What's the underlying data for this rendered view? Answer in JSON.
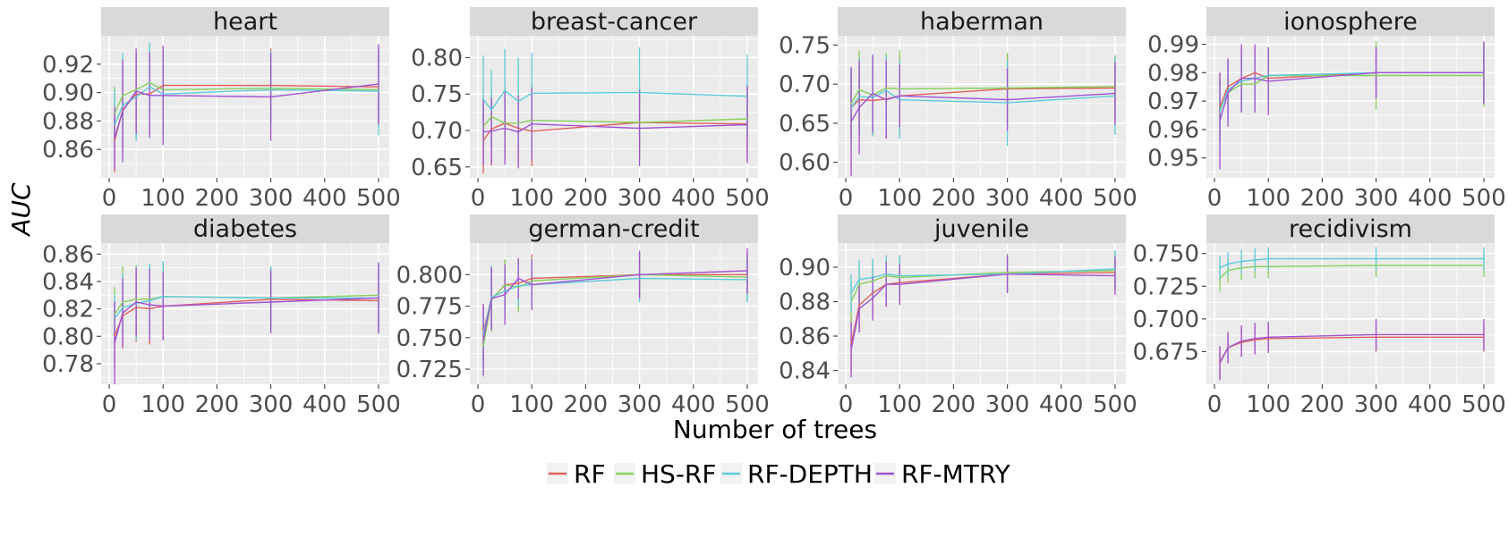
{
  "xlabel": "Number of trees",
  "ylabel": "AUC",
  "legend": [
    {
      "label": "RF",
      "color": "#e0605a"
    },
    {
      "label": "HS-RF",
      "color": "#88d05c"
    },
    {
      "label": "RF-DEPTH",
      "color": "#5ccbd8"
    },
    {
      "label": "RF-MTRY",
      "color": "#a052d4"
    }
  ],
  "chart_data": [
    {
      "type": "line",
      "title": "heart",
      "x": [
        10,
        25,
        50,
        75,
        100,
        300,
        500
      ],
      "xlim": [
        -15,
        520
      ],
      "xticks": [
        0,
        100,
        200,
        300,
        400,
        500
      ],
      "xtick_labels": [
        "0",
        "100",
        "200",
        "300",
        "400",
        "500"
      ],
      "ylim": [
        0.84,
        0.94
      ],
      "yticks": [
        0.86,
        0.88,
        0.9,
        0.92
      ],
      "ytick_labels": [
        "0.86",
        "0.88",
        "0.90",
        "0.92"
      ],
      "series": [
        {
          "name": "RF",
          "values": [
            0.866,
            0.888,
            0.899,
            0.899,
            0.905,
            0.905,
            0.904
          ],
          "err": [
            0.022,
            0.031,
            0.029,
            0.029,
            0.027,
            0.026,
            0.027
          ]
        },
        {
          "name": "HS-RF",
          "values": [
            0.885,
            0.898,
            0.902,
            0.907,
            0.902,
            0.903,
            0.902
          ],
          "err": [
            0.019,
            0.022,
            0.025,
            0.025,
            0.027,
            0.025,
            0.027
          ]
        },
        {
          "name": "RF-DEPTH",
          "values": [
            0.877,
            0.891,
            0.897,
            0.904,
            0.899,
            0.902,
            0.901
          ],
          "err": [
            0.025,
            0.037,
            0.031,
            0.031,
            0.031,
            0.027,
            0.031
          ]
        },
        {
          "name": "RF-MTRY",
          "values": [
            0.868,
            0.887,
            0.901,
            0.898,
            0.898,
            0.897,
            0.906
          ],
          "err": [
            0.022,
            0.036,
            0.03,
            0.03,
            0.035,
            0.031,
            0.028
          ]
        }
      ]
    },
    {
      "type": "line",
      "title": "breast-cancer",
      "x": [
        10,
        25,
        50,
        75,
        100,
        300,
        500
      ],
      "xlim": [
        -15,
        520
      ],
      "xticks": [
        0,
        100,
        200,
        300,
        400,
        500
      ],
      "xtick_labels": [
        "0",
        "100",
        "200",
        "300",
        "400",
        "500"
      ],
      "ylim": [
        0.635,
        0.83
      ],
      "yticks": [
        0.65,
        0.7,
        0.75,
        0.8
      ],
      "ytick_labels": [
        "0.65",
        "0.70",
        "0.75",
        "0.80"
      ],
      "series": [
        {
          "name": "RF",
          "values": [
            0.686,
            0.702,
            0.71,
            0.703,
            0.699,
            0.711,
            0.709
          ],
          "err": [
            0.045,
            0.05,
            0.05,
            0.05,
            0.048,
            0.05,
            0.05
          ]
        },
        {
          "name": "HS-RF",
          "values": [
            0.705,
            0.719,
            0.71,
            0.71,
            0.714,
            0.711,
            0.716
          ],
          "err": [
            0.042,
            0.04,
            0.05,
            0.05,
            0.05,
            0.05,
            0.05
          ]
        },
        {
          "name": "RF-DEPTH",
          "values": [
            0.743,
            0.728,
            0.755,
            0.74,
            0.751,
            0.752,
            0.747
          ],
          "err": [
            0.06,
            0.055,
            0.057,
            0.06,
            0.056,
            0.062,
            0.057
          ]
        },
        {
          "name": "RF-MTRY",
          "values": [
            0.698,
            0.699,
            0.703,
            0.698,
            0.709,
            0.703,
            0.708
          ],
          "err": [
            0.045,
            0.045,
            0.05,
            0.05,
            0.05,
            0.052,
            0.053
          ]
        }
      ]
    },
    {
      "type": "line",
      "title": "haberman",
      "x": [
        10,
        25,
        50,
        75,
        100,
        300,
        500
      ],
      "xlim": [
        -15,
        520
      ],
      "xticks": [
        0,
        100,
        200,
        300,
        400,
        500
      ],
      "xtick_labels": [
        "0",
        "100",
        "200",
        "300",
        "400",
        "500"
      ],
      "ylim": [
        0.58,
        0.762
      ],
      "yticks": [
        0.6,
        0.65,
        0.7,
        0.75
      ],
      "ytick_labels": [
        "0.60",
        "0.65",
        "0.70",
        "0.75"
      ],
      "series": [
        {
          "name": "RF",
          "values": [
            0.67,
            0.68,
            0.679,
            0.681,
            0.685,
            0.694,
            0.695
          ],
          "err": [
            0.04,
            0.045,
            0.045,
            0.05,
            0.05,
            0.045,
            0.04
          ]
        },
        {
          "name": "HS-RF",
          "values": [
            0.675,
            0.693,
            0.686,
            0.695,
            0.694,
            0.695,
            0.697
          ],
          "err": [
            0.04,
            0.05,
            0.05,
            0.045,
            0.05,
            0.045,
            0.04
          ]
        },
        {
          "name": "RF-DEPTH",
          "values": [
            0.67,
            0.684,
            0.683,
            0.692,
            0.68,
            0.676,
            0.685
          ],
          "err": [
            0.05,
            0.05,
            0.05,
            0.045,
            0.05,
            0.055,
            0.05
          ]
        },
        {
          "name": "RF-MTRY",
          "values": [
            0.652,
            0.67,
            0.688,
            0.68,
            0.685,
            0.68,
            0.688
          ],
          "err": [
            0.07,
            0.06,
            0.05,
            0.05,
            0.04,
            0.04,
            0.04
          ]
        }
      ]
    },
    {
      "type": "line",
      "title": "ionosphere",
      "x": [
        10,
        25,
        50,
        75,
        100,
        300,
        500
      ],
      "xlim": [
        -15,
        520
      ],
      "xticks": [
        0,
        100,
        200,
        300,
        400,
        500
      ],
      "xtick_labels": [
        "0",
        "100",
        "200",
        "300",
        "400",
        "500"
      ],
      "ylim": [
        0.943,
        0.993
      ],
      "yticks": [
        0.95,
        0.96,
        0.97,
        0.98,
        0.99
      ],
      "ytick_labels": [
        "0.95",
        "0.96",
        "0.97",
        "0.98",
        "0.99"
      ],
      "series": [
        {
          "name": "RF",
          "values": [
            0.968,
            0.975,
            0.978,
            0.98,
            0.978,
            0.98,
            0.98
          ],
          "err": [
            0.012,
            0.01,
            0.01,
            0.009,
            0.009,
            0.009,
            0.01
          ]
        },
        {
          "name": "HS-RF",
          "values": [
            0.967,
            0.973,
            0.976,
            0.976,
            0.979,
            0.979,
            0.979
          ],
          "err": [
            0.011,
            0.01,
            0.01,
            0.01,
            0.009,
            0.012,
            0.011
          ]
        },
        {
          "name": "RF-DEPTH",
          "values": [
            0.966,
            0.974,
            0.977,
            0.978,
            0.979,
            0.98,
            0.98
          ],
          "err": [
            0.012,
            0.011,
            0.01,
            0.01,
            0.01,
            0.009,
            0.011
          ]
        },
        {
          "name": "RF-MTRY",
          "values": [
            0.963,
            0.973,
            0.978,
            0.978,
            0.977,
            0.98,
            0.98
          ],
          "err": [
            0.017,
            0.012,
            0.012,
            0.012,
            0.012,
            0.009,
            0.011
          ]
        }
      ]
    },
    {
      "type": "line",
      "title": "diabetes",
      "x": [
        10,
        25,
        50,
        75,
        100,
        300,
        500
      ],
      "xlim": [
        -15,
        520
      ],
      "xticks": [
        0,
        100,
        200,
        300,
        400,
        500
      ],
      "xtick_labels": [
        "0",
        "100",
        "200",
        "300",
        "400",
        "500"
      ],
      "ylim": [
        0.765,
        0.868
      ],
      "yticks": [
        0.78,
        0.8,
        0.82,
        0.84,
        0.86
      ],
      "ytick_labels": [
        "0.78",
        "0.80",
        "0.82",
        "0.84",
        "0.86"
      ],
      "series": [
        {
          "name": "RF",
          "values": [
            0.8,
            0.815,
            0.821,
            0.82,
            0.822,
            0.827,
            0.826
          ],
          "err": [
            0.025,
            0.024,
            0.025,
            0.026,
            0.025,
            0.022,
            0.023
          ]
        },
        {
          "name": "HS-RF",
          "values": [
            0.816,
            0.825,
            0.827,
            0.827,
            0.829,
            0.828,
            0.83
          ],
          "err": [
            0.02,
            0.026,
            0.025,
            0.025,
            0.024,
            0.023,
            0.024
          ]
        },
        {
          "name": "RF-DEPTH",
          "values": [
            0.813,
            0.821,
            0.824,
            0.826,
            0.829,
            0.828,
            0.828
          ],
          "err": [
            0.018,
            0.025,
            0.027,
            0.027,
            0.026,
            0.023,
            0.026
          ]
        },
        {
          "name": "RF-MTRY",
          "values": [
            0.795,
            0.817,
            0.825,
            0.823,
            0.822,
            0.825,
            0.828
          ],
          "err": [
            0.03,
            0.025,
            0.025,
            0.026,
            0.025,
            0.023,
            0.026
          ]
        }
      ]
    },
    {
      "type": "line",
      "title": "german-credit",
      "x": [
        10,
        25,
        50,
        75,
        100,
        300,
        500
      ],
      "xlim": [
        -15,
        520
      ],
      "xticks": [
        0,
        100,
        200,
        300,
        400,
        500
      ],
      "xtick_labels": [
        "0",
        "100",
        "200",
        "300",
        "400",
        "500"
      ],
      "ylim": [
        0.713,
        0.825
      ],
      "yticks": [
        0.725,
        0.75,
        0.775,
        0.8
      ],
      "ytick_labels": [
        "0.725",
        "0.750",
        "0.775",
        "0.800"
      ],
      "series": [
        {
          "name": "RF",
          "values": [
            0.755,
            0.78,
            0.792,
            0.793,
            0.797,
            0.8,
            0.8
          ],
          "err": [
            0.022,
            0.025,
            0.02,
            0.02,
            0.019,
            0.018,
            0.017
          ]
        },
        {
          "name": "HS-RF",
          "values": [
            0.743,
            0.78,
            0.792,
            0.79,
            0.795,
            0.8,
            0.798
          ],
          "err": [
            0.024,
            0.025,
            0.02,
            0.02,
            0.019,
            0.018,
            0.018
          ]
        },
        {
          "name": "RF-DEPTH",
          "values": [
            0.752,
            0.782,
            0.787,
            0.791,
            0.792,
            0.797,
            0.796
          ],
          "err": [
            0.024,
            0.025,
            0.02,
            0.016,
            0.02,
            0.019,
            0.018
          ]
        },
        {
          "name": "RF-MTRY",
          "values": [
            0.748,
            0.781,
            0.784,
            0.797,
            0.792,
            0.8,
            0.803
          ],
          "err": [
            0.028,
            0.025,
            0.024,
            0.016,
            0.02,
            0.019,
            0.018
          ]
        }
      ]
    },
    {
      "type": "line",
      "title": "juvenile",
      "x": [
        10,
        25,
        50,
        75,
        100,
        300,
        500
      ],
      "xlim": [
        -15,
        520
      ],
      "xticks": [
        0,
        100,
        200,
        300,
        400,
        500
      ],
      "xtick_labels": [
        "0",
        "100",
        "200",
        "300",
        "400",
        "500"
      ],
      "ylim": [
        0.832,
        0.914
      ],
      "yticks": [
        0.84,
        0.86,
        0.88,
        0.9
      ],
      "ytick_labels": [
        "0.84",
        "0.86",
        "0.88",
        "0.90"
      ],
      "series": [
        {
          "name": "RF",
          "values": [
            0.855,
            0.878,
            0.885,
            0.89,
            0.891,
            0.896,
            0.897
          ],
          "err": [
            0.016,
            0.014,
            0.013,
            0.013,
            0.012,
            0.011,
            0.011
          ]
        },
        {
          "name": "HS-RF",
          "values": [
            0.88,
            0.89,
            0.892,
            0.895,
            0.894,
            0.897,
            0.898
          ],
          "err": [
            0.012,
            0.011,
            0.012,
            0.011,
            0.012,
            0.011,
            0.011
          ]
        },
        {
          "name": "RF-DEPTH",
          "values": [
            0.885,
            0.893,
            0.894,
            0.896,
            0.895,
            0.896,
            0.899
          ],
          "err": [
            0.011,
            0.011,
            0.011,
            0.011,
            0.012,
            0.011,
            0.011
          ]
        },
        {
          "name": "RF-MTRY",
          "values": [
            0.852,
            0.876,
            0.882,
            0.89,
            0.89,
            0.896,
            0.895
          ],
          "err": [
            0.016,
            0.014,
            0.013,
            0.013,
            0.012,
            0.011,
            0.011
          ]
        }
      ]
    },
    {
      "type": "line",
      "title": "recidivism",
      "x": [
        10,
        25,
        50,
        75,
        100,
        300,
        500
      ],
      "xlim": [
        -15,
        520
      ],
      "xticks": [
        0,
        100,
        200,
        300,
        400,
        500
      ],
      "xtick_labels": [
        "0",
        "100",
        "200",
        "300",
        "400",
        "500"
      ],
      "ylim": [
        0.65,
        0.758
      ],
      "yticks": [
        0.675,
        0.7,
        0.725,
        0.75
      ],
      "ytick_labels": [
        "0.675",
        "0.700",
        "0.725",
        "0.750"
      ],
      "series": [
        {
          "name": "RF",
          "values": [
            0.667,
            0.678,
            0.682,
            0.684,
            0.685,
            0.686,
            0.686
          ],
          "err": [
            0.012,
            0.011,
            0.011,
            0.011,
            0.011,
            0.011,
            0.011
          ]
        },
        {
          "name": "HS-RF",
          "values": [
            0.731,
            0.737,
            0.739,
            0.74,
            0.74,
            0.741,
            0.741
          ],
          "err": [
            0.01,
            0.009,
            0.009,
            0.009,
            0.009,
            0.009,
            0.009
          ]
        },
        {
          "name": "RF-DEPTH",
          "values": [
            0.739,
            0.742,
            0.744,
            0.745,
            0.746,
            0.746,
            0.746
          ],
          "err": [
            0.009,
            0.009,
            0.009,
            0.009,
            0.009,
            0.009,
            0.009
          ]
        },
        {
          "name": "RF-MTRY",
          "values": [
            0.666,
            0.678,
            0.683,
            0.685,
            0.686,
            0.688,
            0.688
          ],
          "err": [
            0.013,
            0.012,
            0.012,
            0.012,
            0.012,
            0.012,
            0.012
          ]
        }
      ]
    }
  ]
}
